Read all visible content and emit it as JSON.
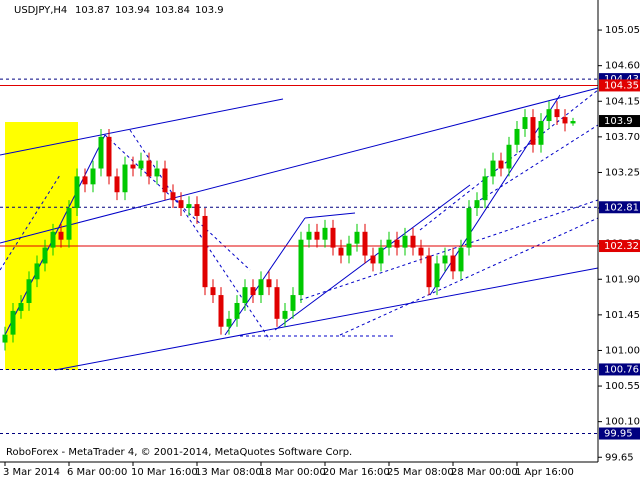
{
  "chart_data": {
    "type": "candlestick",
    "symbol": "USDJPY,H4",
    "footer": "RoboForex - MetaTrader 4, © 2001-2014, MetaQuotes Software Corp.",
    "up_color": "#00c800",
    "down_color": "#e00000",
    "ylim": [
      99.59,
      105.43
    ],
    "yticks": [
      105.05,
      {
        "value": 104.6,
        "label": "104.60"
      },
      104.15,
      {
        "value": 103.7,
        "label": "103.70"
      },
      103.25,
      {
        "value": 102.8,
        "label": "102.80"
      },
      102.35,
      {
        "value": 101.9,
        "label": "101.90"
      },
      101.45,
      {
        "value": 101,
        "label": "101.00"
      },
      100.55,
      {
        "value": 100.1,
        "label": "100.10"
      },
      99.65
    ],
    "categories": [
      "3 Mar 2014",
      null,
      null,
      null,
      null,
      null,
      null,
      null,
      "6 Mar 00:00",
      null,
      null,
      null,
      null,
      null,
      null,
      null,
      "10 Mar 16:00",
      null,
      null,
      null,
      null,
      null,
      null,
      null,
      "13 Mar 08:00",
      null,
      null,
      null,
      null,
      null,
      null,
      null,
      "18 Mar 00:00",
      null,
      null,
      null,
      null,
      null,
      null,
      null,
      "20 Mar 16:00",
      null,
      null,
      null,
      null,
      null,
      null,
      null,
      "25 Mar 08:00",
      null,
      null,
      null,
      null,
      null,
      null,
      null,
      "28 Mar 00:00",
      null,
      null,
      null,
      null,
      null,
      null,
      null,
      "1 Apr 16:00",
      null,
      null,
      null,
      null,
      null,
      null,
      null
    ],
    "open": [
      101.1,
      101.2,
      101.5,
      101.6,
      101.9,
      102.1,
      102.3,
      102.5,
      102.4,
      102.8,
      103.2,
      103.1,
      103.3,
      103.7,
      103.2,
      103.0,
      103.35,
      103.3,
      103.4,
      103.2,
      103.3,
      103.0,
      102.9,
      102.8,
      102.85,
      102.7,
      101.8,
      101.7,
      101.3,
      101.4,
      101.6,
      101.8,
      101.7,
      101.9,
      101.8,
      101.4,
      101.5,
      101.7,
      102.4,
      102.5,
      102.4,
      102.55,
      102.3,
      102.2,
      102.35,
      102.5,
      102.2,
      102.1,
      102.3,
      102.4,
      102.3,
      102.45,
      102.3,
      102.2,
      101.8,
      102.1,
      102.2,
      102.0,
      102.3,
      102.8,
      102.9,
      103.2,
      103.4,
      103.3,
      103.6,
      103.8,
      103.95,
      103.6,
      103.9,
      104.05,
      103.95,
      103.87
    ],
    "high": [
      101.3,
      101.6,
      101.7,
      102.0,
      102.2,
      102.4,
      102.6,
      102.6,
      102.9,
      103.3,
      103.3,
      103.4,
      103.8,
      103.8,
      103.3,
      103.45,
      103.45,
      103.5,
      103.5,
      103.4,
      103.4,
      103.1,
      103.0,
      102.95,
      102.95,
      102.8,
      101.9,
      101.8,
      101.5,
      101.7,
      101.9,
      101.9,
      102.0,
      102.0,
      101.9,
      101.6,
      101.8,
      102.5,
      102.6,
      102.6,
      102.65,
      102.65,
      102.4,
      102.45,
      102.6,
      102.6,
      102.3,
      102.4,
      102.5,
      102.5,
      102.55,
      102.55,
      102.4,
      102.3,
      102.2,
      102.3,
      102.3,
      102.4,
      102.9,
      103.0,
      103.3,
      103.5,
      103.5,
      103.7,
      103.9,
      104.05,
      104.05,
      104.0,
      104.15,
      104.15,
      104.05,
      103.94
    ],
    "low": [
      101.0,
      101.1,
      101.4,
      101.5,
      101.8,
      102.0,
      102.2,
      102.3,
      102.3,
      102.7,
      103.0,
      103.0,
      103.2,
      103.1,
      102.9,
      102.9,
      103.2,
      103.2,
      103.1,
      103.1,
      102.9,
      102.8,
      102.7,
      102.7,
      102.6,
      101.7,
      101.6,
      101.2,
      101.2,
      101.3,
      101.5,
      101.6,
      101.6,
      101.7,
      101.3,
      101.3,
      101.4,
      101.6,
      102.3,
      102.3,
      102.3,
      102.2,
      102.1,
      102.1,
      102.25,
      102.1,
      102.0,
      102.0,
      102.2,
      102.2,
      102.2,
      102.2,
      102.1,
      101.7,
      101.7,
      102.0,
      101.9,
      101.9,
      102.2,
      102.7,
      102.8,
      103.1,
      103.2,
      103.2,
      103.5,
      103.7,
      103.5,
      103.5,
      103.8,
      103.85,
      103.77,
      103.84
    ],
    "close": [
      101.2,
      101.5,
      101.6,
      101.9,
      102.1,
      102.3,
      102.5,
      102.4,
      102.8,
      103.2,
      103.1,
      103.3,
      103.7,
      103.2,
      103.0,
      103.35,
      103.3,
      103.4,
      103.2,
      103.3,
      103.0,
      102.9,
      102.8,
      102.85,
      102.7,
      101.8,
      101.7,
      101.3,
      101.4,
      101.6,
      101.8,
      101.7,
      101.9,
      101.8,
      101.4,
      101.5,
      101.7,
      102.4,
      102.5,
      102.4,
      102.55,
      102.3,
      102.2,
      102.35,
      102.5,
      102.2,
      102.1,
      102.3,
      102.4,
      102.3,
      102.45,
      102.3,
      102.2,
      101.8,
      102.1,
      102.2,
      102.0,
      102.3,
      102.8,
      102.9,
      103.2,
      103.4,
      103.3,
      103.6,
      103.8,
      103.95,
      103.6,
      103.9,
      104.05,
      103.95,
      103.87,
      103.9
    ],
    "levels": [
      {
        "value": 104.43,
        "color": "#000080",
        "style": "dashed"
      },
      {
        "value": 104.35,
        "color": "#e00000",
        "style": "solid"
      },
      {
        "value": 102.81,
        "color": "#000080",
        "style": "dashed"
      },
      {
        "value": 102.32,
        "color": "#e00000",
        "style": "solid"
      },
      {
        "value": 100.76,
        "color": "#000080",
        "style": "dashed"
      },
      {
        "value": 99.95,
        "color": "#000080",
        "style": "dashed"
      }
    ]
  }
}
